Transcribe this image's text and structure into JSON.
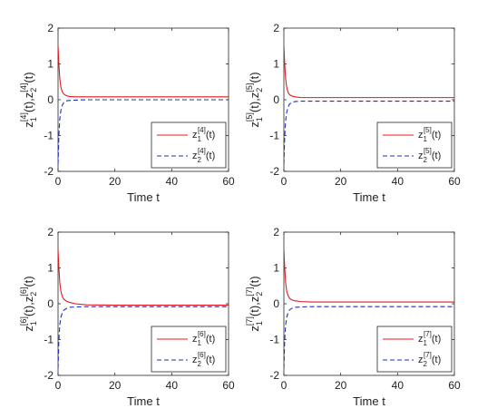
{
  "chart_data": [
    {
      "type": "line",
      "xlabel": "Time t",
      "ylabel": {
        "base": "z",
        "idx1": "1",
        "idx2": "2",
        "sup": "[4]",
        "arg": "(t)"
      },
      "xlim": [
        0,
        60
      ],
      "ylim": [
        -2,
        2
      ],
      "xticks": [
        "0",
        "20",
        "40",
        "60"
      ],
      "yticks": [
        "-2",
        "-1",
        "0",
        "1",
        "2"
      ],
      "legend_position": "bottom-right",
      "series": [
        {
          "name": {
            "base": "z",
            "sub": "1",
            "sup": "[4]",
            "arg": "(t)"
          },
          "color": "#e41a1c",
          "style": "solid",
          "x": [
            0,
            0.3,
            0.6,
            1,
            1.5,
            2,
            3,
            4,
            6,
            10,
            20,
            40,
            60
          ],
          "y": [
            1.5,
            1.0,
            0.6,
            0.35,
            0.22,
            0.16,
            0.11,
            0.09,
            0.08,
            0.08,
            0.08,
            0.08,
            0.08
          ]
        },
        {
          "name": {
            "base": "z",
            "sub": "2",
            "sup": "[4]",
            "arg": "(t)"
          },
          "color": "#1f2fbf",
          "style": "dashed",
          "x": [
            0,
            0.3,
            0.6,
            1,
            1.5,
            2,
            3,
            4,
            6,
            10,
            20,
            40,
            60
          ],
          "y": [
            -1.8,
            -1.0,
            -0.55,
            -0.3,
            -0.15,
            -0.08,
            -0.03,
            -0.02,
            -0.01,
            0.0,
            0.0,
            0.0,
            0.0
          ]
        }
      ]
    },
    {
      "type": "line",
      "xlabel": "Time t",
      "ylabel": {
        "base": "z",
        "idx1": "1",
        "idx2": "2",
        "sup": "[5]",
        "arg": "(t)"
      },
      "xlim": [
        0,
        60
      ],
      "ylim": [
        -2,
        2
      ],
      "xticks": [
        "0",
        "20",
        "40",
        "60"
      ],
      "yticks": [
        "-2",
        "-1",
        "0",
        "1",
        "2"
      ],
      "legend_position": "bottom-right",
      "series": [
        {
          "name": {
            "base": "z",
            "sub": "1",
            "sup": "[5]",
            "arg": "(t)"
          },
          "color": "#e41a1c",
          "style": "solid",
          "x": [
            0,
            0.3,
            0.6,
            1,
            1.5,
            2,
            3,
            4,
            6,
            10,
            20,
            40,
            60
          ],
          "y": [
            1.5,
            1.0,
            0.6,
            0.35,
            0.2,
            0.14,
            0.1,
            0.08,
            0.06,
            0.06,
            0.06,
            0.06,
            0.06
          ]
        },
        {
          "name": {
            "base": "z",
            "sub": "2",
            "sup": "[5]",
            "arg": "(t)"
          },
          "color": "#1f2fbf",
          "style": "dashed",
          "x": [
            0,
            0.3,
            0.6,
            1,
            1.5,
            2,
            3,
            4,
            6,
            10,
            20,
            40,
            60
          ],
          "y": [
            -1.8,
            -1.0,
            -0.6,
            -0.35,
            -0.2,
            -0.12,
            -0.07,
            -0.05,
            -0.04,
            -0.04,
            -0.04,
            -0.04,
            -0.04
          ]
        }
      ]
    },
    {
      "type": "line",
      "xlabel": "Time t",
      "ylabel": {
        "base": "z",
        "idx1": "1",
        "idx2": "2",
        "sup": "[6]",
        "arg": "(t)"
      },
      "xlim": [
        0,
        60
      ],
      "ylim": [
        -2,
        2
      ],
      "xticks": [
        "0",
        "20",
        "40",
        "60"
      ],
      "yticks": [
        "-2",
        "-1",
        "0",
        "1",
        "2"
      ],
      "legend_position": "bottom-right",
      "series": [
        {
          "name": {
            "base": "z",
            "sub": "1",
            "sup": "[6]",
            "arg": "(t)"
          },
          "color": "#e41a1c",
          "style": "solid",
          "x": [
            0,
            0.3,
            0.6,
            1,
            1.5,
            2,
            3,
            4,
            6,
            10,
            20,
            40,
            60
          ],
          "y": [
            1.5,
            1.0,
            0.6,
            0.35,
            0.2,
            0.13,
            0.07,
            0.04,
            0.0,
            -0.03,
            -0.04,
            -0.04,
            -0.04
          ]
        },
        {
          "name": {
            "base": "z",
            "sub": "2",
            "sup": "[6]",
            "arg": "(t)"
          },
          "color": "#1f2fbf",
          "style": "dashed",
          "x": [
            0,
            0.3,
            0.6,
            1,
            1.5,
            2,
            3,
            4,
            6,
            10,
            20,
            40,
            60
          ],
          "y": [
            -1.8,
            -1.0,
            -0.6,
            -0.38,
            -0.25,
            -0.18,
            -0.13,
            -0.1,
            -0.09,
            -0.08,
            -0.08,
            -0.08,
            -0.08
          ]
        }
      ]
    },
    {
      "type": "line",
      "xlabel": "Time t",
      "ylabel": {
        "base": "z",
        "idx1": "1",
        "idx2": "2",
        "sup": "[7]",
        "arg": "(t)"
      },
      "xlim": [
        0,
        60
      ],
      "ylim": [
        -2,
        2
      ],
      "xticks": [
        "0",
        "20",
        "40",
        "60"
      ],
      "yticks": [
        "-2",
        "-1",
        "0",
        "1",
        "2"
      ],
      "legend_position": "bottom-right",
      "series": [
        {
          "name": {
            "base": "z",
            "sub": "1",
            "sup": "[7]",
            "arg": "(t)"
          },
          "color": "#e41a1c",
          "style": "solid",
          "x": [
            0,
            0.3,
            0.6,
            1,
            1.5,
            2,
            3,
            4,
            6,
            10,
            20,
            40,
            60
          ],
          "y": [
            1.5,
            1.0,
            0.6,
            0.35,
            0.22,
            0.15,
            0.1,
            0.08,
            0.06,
            0.05,
            0.05,
            0.05,
            0.05
          ]
        },
        {
          "name": {
            "base": "z",
            "sub": "2",
            "sup": "[7]",
            "arg": "(t)"
          },
          "color": "#1f2fbf",
          "style": "dashed",
          "x": [
            0,
            0.3,
            0.6,
            1,
            1.5,
            2,
            3,
            4,
            6,
            10,
            20,
            40,
            60
          ],
          "y": [
            -1.8,
            -1.0,
            -0.6,
            -0.38,
            -0.24,
            -0.17,
            -0.12,
            -0.1,
            -0.09,
            -0.08,
            -0.08,
            -0.08,
            -0.08
          ]
        }
      ]
    }
  ]
}
